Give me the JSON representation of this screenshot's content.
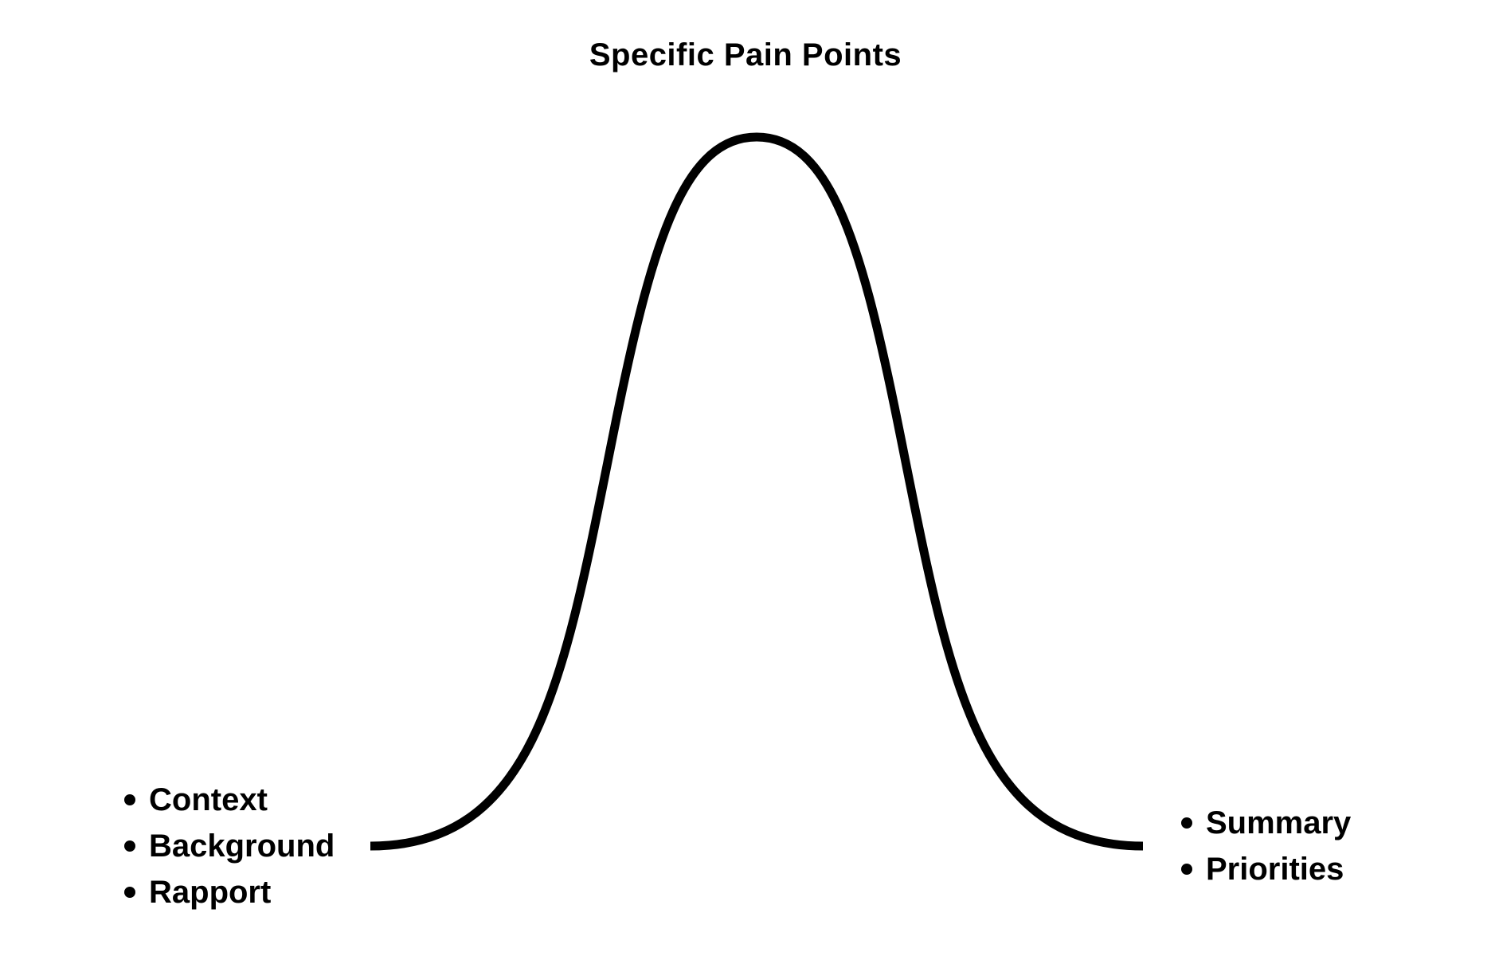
{
  "title": "Specific Pain Points",
  "left_list": {
    "items": [
      "Context",
      "Background",
      "Rapport"
    ]
  },
  "right_list": {
    "items": [
      "Summary",
      "Priorities"
    ]
  },
  "curve": {
    "shape": "bell curve",
    "stroke_color": "#000000"
  }
}
